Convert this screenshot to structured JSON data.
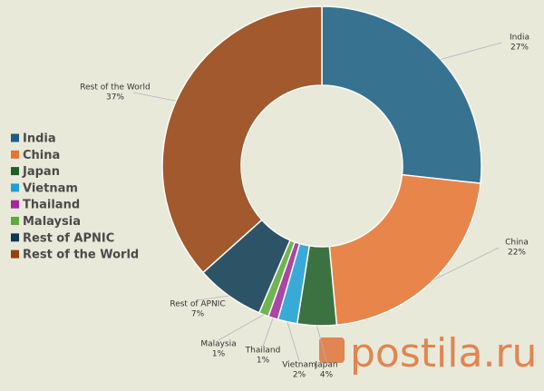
{
  "chart_data": {
    "type": "donut",
    "categories": [
      "India",
      "China",
      "Japan",
      "Vietnam",
      "Thailand",
      "Malaysia",
      "Rest of APNIC",
      "Rest of the World"
    ],
    "values": [
      27,
      22,
      4,
      2,
      1,
      1,
      7,
      37
    ],
    "value_labels": [
      "27%",
      "22%",
      "4%",
      "2%",
      "1%",
      "1%",
      "7%",
      "37%"
    ],
    "colors": [
      "#1a5e85",
      "#e87433",
      "#1e5e28",
      "#1ba0d8",
      "#a2299a",
      "#5aab3a",
      "#0d3a52",
      "#954010"
    ],
    "legend": "left"
  },
  "watermark": "postila.ru"
}
